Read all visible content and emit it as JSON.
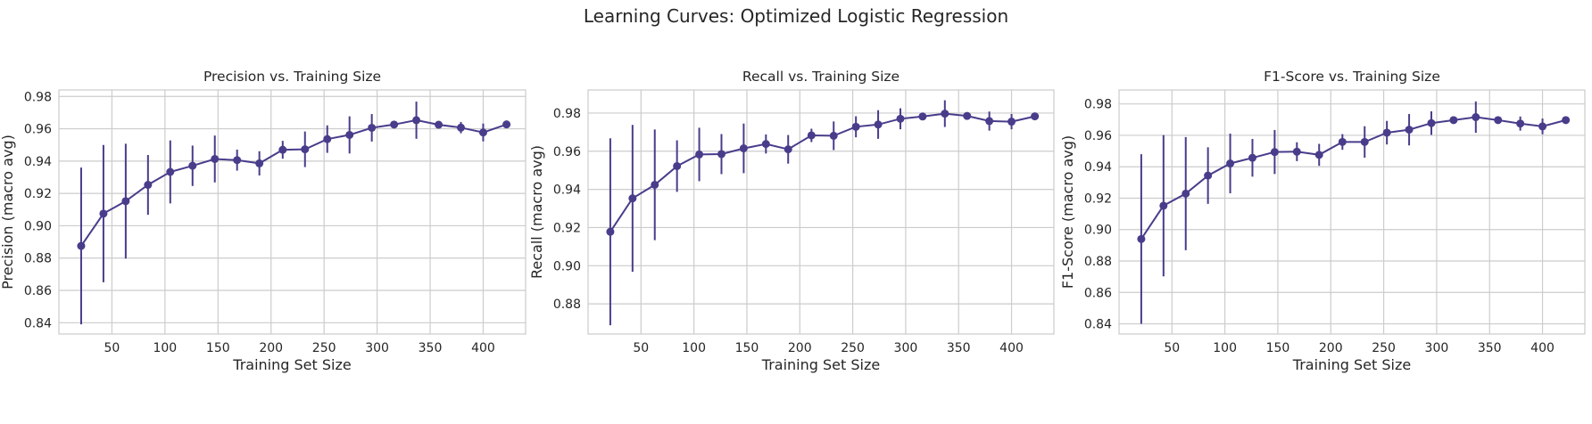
{
  "figure": {
    "suptitle": "Learning Curves: Optimized Logistic Regression"
  },
  "colors": {
    "series": "#483d8b",
    "grid": "#cccccc",
    "background": "#ffffff"
  },
  "chart_data": [
    {
      "type": "line",
      "title": "Precision vs. Training Size",
      "xlabel": "Training Set Size",
      "ylabel": "Precision (macro avg)",
      "xlim": [
        0,
        440
      ],
      "ylim": [
        0.833,
        0.984
      ],
      "xticks": [
        50,
        100,
        150,
        200,
        250,
        300,
        350,
        400
      ],
      "yticks": [
        0.84,
        0.86,
        0.88,
        0.9,
        0.92,
        0.94,
        0.96,
        0.98
      ],
      "ytick_labels": [
        "0.84",
        "0.86",
        "0.88",
        "0.90",
        "0.92",
        "0.94",
        "0.96",
        "0.98"
      ],
      "grid": true,
      "error_bars": true,
      "x": [
        21,
        42,
        63,
        84,
        105,
        126,
        147,
        168,
        189,
        211,
        232,
        253,
        274,
        295,
        316,
        337,
        358,
        379,
        400,
        422
      ],
      "y": [
        0.8875,
        0.9075,
        0.9152,
        0.9253,
        0.9333,
        0.9371,
        0.9413,
        0.9406,
        0.9386,
        0.947,
        0.9473,
        0.9536,
        0.9562,
        0.9606,
        0.9626,
        0.9653,
        0.9625,
        0.9607,
        0.9577,
        0.9627
      ],
      "err": [
        0.0485,
        0.0425,
        0.0355,
        0.0185,
        0.0195,
        0.0125,
        0.0145,
        0.0065,
        0.0075,
        0.0055,
        0.011,
        0.0085,
        0.0115,
        0.0085,
        0.001,
        0.0115,
        0.0015,
        0.0035,
        0.0055,
        0.0015
      ]
    },
    {
      "type": "line",
      "title": "Recall vs. Training Size",
      "xlabel": "Training Set Size",
      "ylabel": "Recall (macro avg)",
      "xlim": [
        0,
        440
      ],
      "ylim": [
        0.8642,
        0.9921
      ],
      "xticks": [
        50,
        100,
        150,
        200,
        250,
        300,
        350,
        400
      ],
      "yticks": [
        0.88,
        0.9,
        0.92,
        0.94,
        0.96,
        0.98
      ],
      "ytick_labels": [
        "0.88",
        "0.90",
        "0.92",
        "0.94",
        "0.96",
        "0.98"
      ],
      "grid": true,
      "error_bars": true,
      "x": [
        21,
        42,
        63,
        84,
        105,
        126,
        147,
        168,
        189,
        211,
        232,
        253,
        274,
        295,
        316,
        337,
        358,
        379,
        400,
        422
      ],
      "y": [
        0.9178,
        0.9353,
        0.9424,
        0.9522,
        0.9583,
        0.9585,
        0.9615,
        0.9638,
        0.961,
        0.9683,
        0.9681,
        0.9728,
        0.974,
        0.977,
        0.9782,
        0.9797,
        0.9785,
        0.9758,
        0.9755,
        0.9783
      ],
      "err": [
        0.049,
        0.0385,
        0.029,
        0.0135,
        0.014,
        0.0105,
        0.013,
        0.005,
        0.0075,
        0.0035,
        0.0075,
        0.0055,
        0.0075,
        0.0055,
        0.0008,
        0.007,
        0.001,
        0.005,
        0.004,
        0.001
      ]
    },
    {
      "type": "line",
      "title": "F1-Score vs. Training Size",
      "xlabel": "Training Set Size",
      "ylabel": "F1-Score (macro avg)",
      "xlim": [
        0,
        440
      ],
      "ylim": [
        0.8335,
        0.9889
      ],
      "xticks": [
        50,
        100,
        150,
        200,
        250,
        300,
        350,
        400
      ],
      "yticks": [
        0.84,
        0.86,
        0.88,
        0.9,
        0.92,
        0.94,
        0.96,
        0.98
      ],
      "ytick_labels": [
        "0.84",
        "0.86",
        "0.88",
        "0.90",
        "0.92",
        "0.94",
        "0.96",
        "0.98"
      ],
      "grid": true,
      "error_bars": true,
      "x": [
        21,
        42,
        63,
        84,
        105,
        126,
        147,
        168,
        189,
        211,
        232,
        253,
        274,
        295,
        316,
        337,
        358,
        379,
        400,
        422
      ],
      "y": [
        0.894,
        0.9152,
        0.9229,
        0.9344,
        0.9421,
        0.9457,
        0.9494,
        0.9496,
        0.9476,
        0.9558,
        0.9558,
        0.9617,
        0.9636,
        0.9678,
        0.9697,
        0.9716,
        0.9697,
        0.9675,
        0.9657,
        0.9697
      ],
      "err": [
        0.054,
        0.045,
        0.036,
        0.018,
        0.019,
        0.012,
        0.014,
        0.006,
        0.007,
        0.005,
        0.01,
        0.0075,
        0.01,
        0.0075,
        0.0008,
        0.01,
        0.001,
        0.0045,
        0.005,
        0.001
      ]
    }
  ]
}
